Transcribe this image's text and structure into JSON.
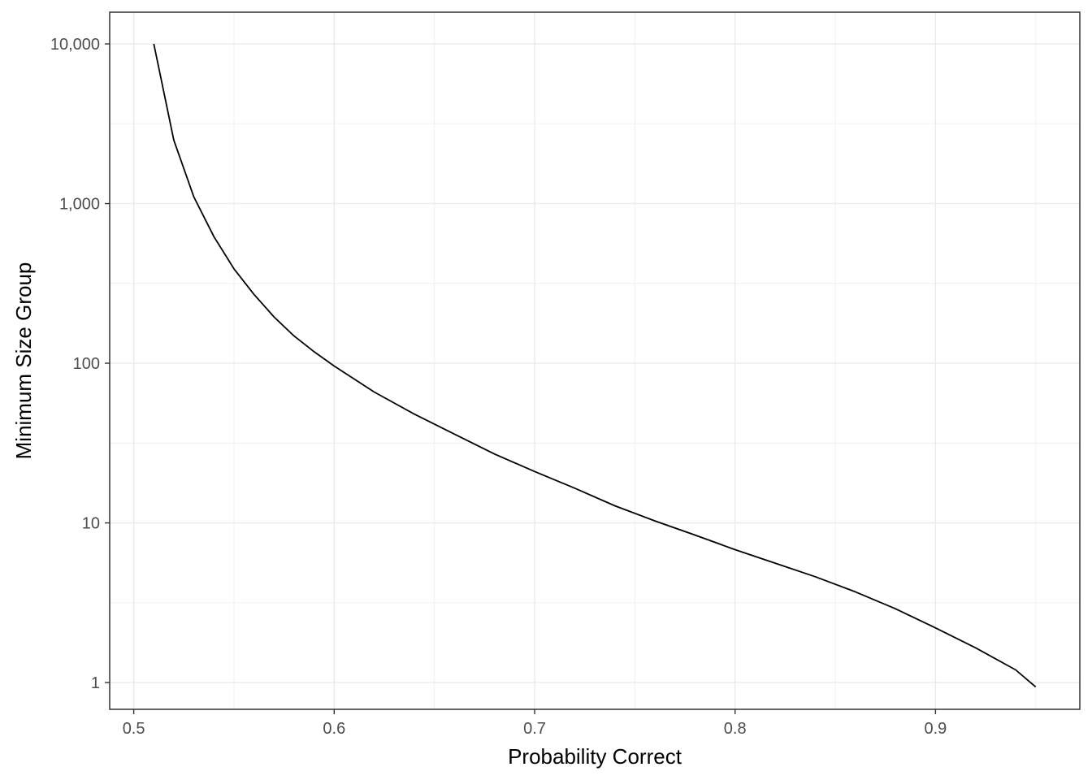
{
  "chart_data": {
    "type": "line",
    "title": "",
    "xlabel": "Probability Correct",
    "ylabel": "Minimum Size Group",
    "x_scale": "linear",
    "y_scale": "log10",
    "xlim": [
      0.488,
      0.972
    ],
    "ylim": [
      0.68,
      15800
    ],
    "x_ticks": [
      0.5,
      0.6,
      0.7,
      0.8,
      0.9
    ],
    "x_tick_labels": [
      "0.5",
      "0.6",
      "0.7",
      "0.8",
      "0.9"
    ],
    "y_ticks": [
      1,
      10,
      100,
      1000,
      10000
    ],
    "y_tick_labels": [
      "1",
      "10",
      "100",
      "1,000",
      "10,000"
    ],
    "grid": true,
    "legend": "none",
    "line_color": "#000000",
    "series": [
      {
        "x": [
          0.51,
          0.52,
          0.53,
          0.54,
          0.55,
          0.56,
          0.57,
          0.58,
          0.59,
          0.6,
          0.62,
          0.64,
          0.66,
          0.68,
          0.7,
          0.72,
          0.74,
          0.76,
          0.78,
          0.8,
          0.82,
          0.84,
          0.86,
          0.88,
          0.9,
          0.92,
          0.94,
          0.95
        ],
        "y": [
          10000,
          2500,
          1100,
          620,
          390,
          270,
          195,
          148,
          118,
          96,
          66,
          48,
          36,
          27,
          21,
          16.5,
          12.8,
          10.3,
          8.4,
          6.8,
          5.6,
          4.6,
          3.7,
          2.9,
          2.2,
          1.65,
          1.2,
          0.94
        ]
      }
    ]
  }
}
